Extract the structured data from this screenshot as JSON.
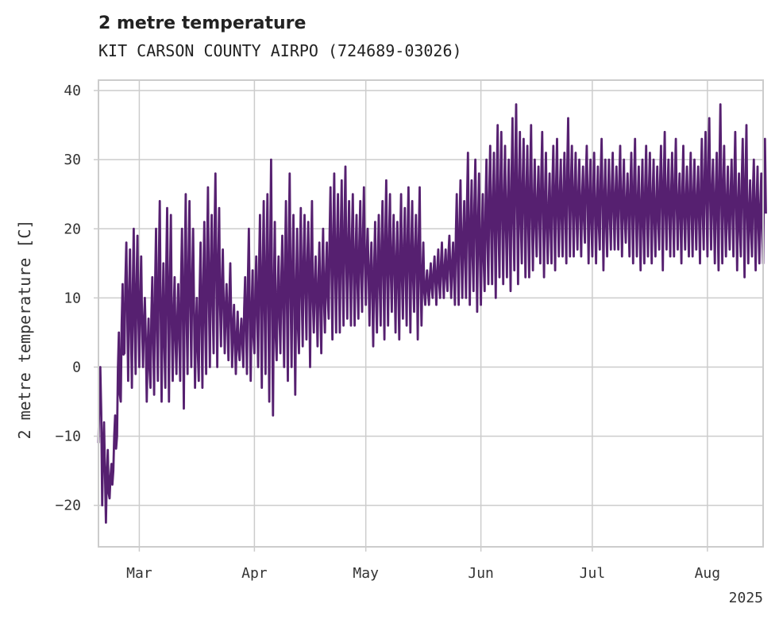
{
  "title": "2 metre temperature",
  "subtitle": "KIT CARSON COUNTY AIRPO (724689-03026)",
  "colors": {
    "line": "#562070",
    "grid": "#cccccc",
    "frame": "#cccccc",
    "text": "#333333"
  },
  "chart_data": {
    "type": "line",
    "title": "2 metre temperature",
    "subtitle": "KIT CARSON COUNTY AIRPO (724689-03026)",
    "xlabel": "",
    "ylabel": "2 metre temperature [C]",
    "x_tick_labels": [
      "Mar",
      "Apr",
      "May",
      "Jun",
      "Jul",
      "Aug"
    ],
    "x_tick_dates": [
      "2025-03-01",
      "2025-04-01",
      "2025-05-01",
      "2025-06-01",
      "2025-07-01",
      "2025-08-01"
    ],
    "x_offset_label": "2025",
    "xlim": [
      "2025-02-18",
      "2025-08-16"
    ],
    "ylim": [
      -26,
      41.5
    ],
    "y_ticks": [
      -20,
      -10,
      0,
      10,
      20,
      30,
      40
    ],
    "y_tick_labels": [
      "−20",
      "−10",
      "0",
      "10",
      "20",
      "30",
      "40"
    ],
    "grid": true,
    "series": [
      {
        "color": "#562070",
        "x": [
          "2025-02-18",
          "2025-02-19",
          "2025-02-20",
          "2025-02-21",
          "2025-02-22",
          "2025-02-23",
          "2025-02-24",
          "2025-02-25",
          "2025-02-26",
          "2025-02-27",
          "2025-02-28",
          "2025-03-01",
          "2025-03-02",
          "2025-03-03",
          "2025-03-04",
          "2025-03-05",
          "2025-03-06",
          "2025-03-07",
          "2025-03-08",
          "2025-03-09",
          "2025-03-10",
          "2025-03-11",
          "2025-03-12",
          "2025-03-13",
          "2025-03-14",
          "2025-03-15",
          "2025-03-16",
          "2025-03-17",
          "2025-03-18",
          "2025-03-19",
          "2025-03-20",
          "2025-03-21",
          "2025-03-22",
          "2025-03-23",
          "2025-03-24",
          "2025-03-25",
          "2025-03-26",
          "2025-03-27",
          "2025-03-28",
          "2025-03-29",
          "2025-03-30",
          "2025-03-31",
          "2025-04-01",
          "2025-04-02",
          "2025-04-03",
          "2025-04-04",
          "2025-04-05",
          "2025-04-06",
          "2025-04-07",
          "2025-04-08",
          "2025-04-09",
          "2025-04-10",
          "2025-04-11",
          "2025-04-12",
          "2025-04-13",
          "2025-04-14",
          "2025-04-15",
          "2025-04-16",
          "2025-04-17",
          "2025-04-18",
          "2025-04-19",
          "2025-04-20",
          "2025-04-21",
          "2025-04-22",
          "2025-04-23",
          "2025-04-24",
          "2025-04-25",
          "2025-04-26",
          "2025-04-27",
          "2025-04-28",
          "2025-04-29",
          "2025-04-30",
          "2025-05-01",
          "2025-05-02",
          "2025-05-03",
          "2025-05-04",
          "2025-05-05",
          "2025-05-06",
          "2025-05-07",
          "2025-05-08",
          "2025-05-09",
          "2025-05-10",
          "2025-05-11",
          "2025-05-12",
          "2025-05-13",
          "2025-05-14",
          "2025-05-15",
          "2025-05-16",
          "2025-05-17",
          "2025-05-18",
          "2025-05-19",
          "2025-05-20",
          "2025-05-21",
          "2025-05-22",
          "2025-05-23",
          "2025-05-24",
          "2025-05-25",
          "2025-05-26",
          "2025-05-27",
          "2025-05-28",
          "2025-05-29",
          "2025-05-30",
          "2025-05-31",
          "2025-06-01",
          "2025-06-02",
          "2025-06-03",
          "2025-06-04",
          "2025-06-05",
          "2025-06-06",
          "2025-06-07",
          "2025-06-08",
          "2025-06-09",
          "2025-06-10",
          "2025-06-11",
          "2025-06-12",
          "2025-06-13",
          "2025-06-14",
          "2025-06-15",
          "2025-06-16",
          "2025-06-17",
          "2025-06-18",
          "2025-06-19",
          "2025-06-20",
          "2025-06-21",
          "2025-06-22",
          "2025-06-23",
          "2025-06-24",
          "2025-06-25",
          "2025-06-26",
          "2025-06-27",
          "2025-06-28",
          "2025-06-29",
          "2025-06-30",
          "2025-07-01",
          "2025-07-02",
          "2025-07-03",
          "2025-07-04",
          "2025-07-05",
          "2025-07-06",
          "2025-07-07",
          "2025-07-08",
          "2025-07-09",
          "2025-07-10",
          "2025-07-11",
          "2025-07-12",
          "2025-07-13",
          "2025-07-14",
          "2025-07-15",
          "2025-07-16",
          "2025-07-17",
          "2025-07-18",
          "2025-07-19",
          "2025-07-20",
          "2025-07-21",
          "2025-07-22",
          "2025-07-23",
          "2025-07-24",
          "2025-07-25",
          "2025-07-26",
          "2025-07-27",
          "2025-07-28",
          "2025-07-29",
          "2025-07-30",
          "2025-07-31",
          "2025-08-01",
          "2025-08-02",
          "2025-08-03",
          "2025-08-04",
          "2025-08-05",
          "2025-08-06",
          "2025-08-07",
          "2025-08-08",
          "2025-08-09",
          "2025-08-10",
          "2025-08-11",
          "2025-08-12",
          "2025-08-13",
          "2025-08-14",
          "2025-08-15",
          "2025-08-16"
        ],
        "min": [
          -11,
          -20,
          -22.5,
          -19,
          -15,
          -10,
          -5,
          2,
          -2,
          -3,
          -1,
          0,
          0,
          -5,
          -3,
          -4,
          -2,
          -5,
          -3,
          -5,
          -2,
          -1,
          -2,
          -6,
          -1,
          0,
          -3,
          -2,
          -3,
          -1,
          0,
          2,
          0,
          3,
          2,
          1,
          0,
          -1,
          1,
          0,
          -1,
          -2,
          2,
          0,
          -3,
          -1,
          -5,
          -7,
          1,
          2,
          0,
          -2,
          0,
          -4,
          2,
          3,
          4,
          0,
          5,
          3,
          2,
          5,
          7,
          4,
          5,
          5,
          6,
          7,
          6,
          6,
          7,
          8,
          9,
          6,
          3,
          5,
          6,
          4,
          6,
          8,
          5,
          4,
          7,
          6,
          5,
          8,
          4,
          6,
          9,
          9,
          10,
          9,
          10,
          10,
          11,
          10,
          9,
          9,
          10,
          10,
          9,
          11,
          8,
          9,
          11,
          12,
          12,
          10,
          13,
          12,
          13,
          11,
          14,
          12,
          15,
          13,
          13,
          14,
          16,
          15,
          13,
          15,
          15,
          14,
          16,
          16,
          15,
          16,
          16,
          17,
          16,
          18,
          15,
          16,
          15,
          17,
          14,
          16,
          17,
          17,
          17,
          16,
          18,
          16,
          15,
          16,
          14,
          15,
          16,
          15,
          16,
          17,
          14,
          17,
          16,
          16,
          17,
          15,
          17,
          16,
          16,
          17,
          15,
          17,
          16,
          17,
          15,
          14,
          15,
          16,
          17,
          16,
          14,
          16,
          13,
          15,
          16,
          14,
          15,
          15,
          16,
          17,
          18
        ],
        "max": [
          0,
          -8,
          -12,
          -14,
          -7,
          5,
          12,
          18,
          17,
          20,
          19,
          16,
          10,
          7,
          13,
          20,
          24,
          15,
          23,
          22,
          13,
          12,
          20,
          25,
          24,
          20,
          10,
          18,
          21,
          26,
          22,
          28,
          23,
          17,
          12,
          15,
          9,
          8,
          7,
          13,
          20,
          14,
          16,
          22,
          24,
          25,
          30,
          21,
          16,
          19,
          24,
          28,
          22,
          20,
          23,
          22,
          21,
          24,
          16,
          18,
          20,
          18,
          26,
          28,
          25,
          27,
          29,
          24,
          25,
          22,
          24,
          26,
          20,
          18,
          21,
          22,
          24,
          27,
          25,
          22,
          21,
          25,
          23,
          26,
          24,
          22,
          26,
          18,
          14,
          15,
          16,
          17,
          18,
          17,
          19,
          18,
          25,
          27,
          24,
          31,
          27,
          30,
          28,
          25,
          30,
          32,
          31,
          35,
          34,
          32,
          30,
          36,
          38,
          34,
          33,
          32,
          35,
          30,
          29,
          34,
          31,
          28,
          32,
          33,
          30,
          31,
          36,
          32,
          31,
          30,
          29,
          32,
          30,
          31,
          29,
          33,
          30,
          30,
          31,
          29,
          32,
          30,
          28,
          31,
          33,
          29,
          30,
          32,
          31,
          30,
          29,
          32,
          34,
          30,
          31,
          33,
          28,
          32,
          29,
          31,
          30,
          29,
          33,
          34,
          36,
          30,
          31,
          38,
          32,
          29,
          30,
          34,
          28,
          33,
          35,
          27,
          30,
          29,
          28,
          33,
          35,
          25
        ]
      }
    ]
  }
}
